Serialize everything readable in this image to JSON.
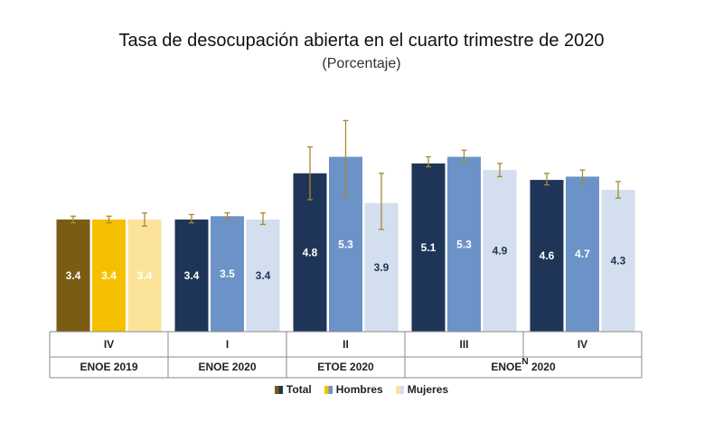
{
  "chart_data": {
    "type": "bar",
    "title": "Tasa de desocupación abierta en el cuarto trimestre de 2020",
    "subtitle": "(Porcentaje)",
    "groups": [
      {
        "quarter": "IV",
        "survey": "ENOE 2019",
        "values": [
          3.4,
          3.4,
          3.4
        ],
        "ci_low": [
          3.3,
          3.3,
          3.2
        ],
        "ci_high": [
          3.5,
          3.5,
          3.6
        ]
      },
      {
        "quarter": "I",
        "survey": "ENOE 2020",
        "values": [
          3.4,
          3.5,
          3.4
        ],
        "ci_low": [
          3.3,
          3.4,
          3.25
        ],
        "ci_high": [
          3.55,
          3.6,
          3.6
        ]
      },
      {
        "quarter": "II",
        "survey": "ETOE 2020",
        "values": [
          4.8,
          5.3,
          3.9
        ],
        "ci_low": [
          4.0,
          4.1,
          3.1
        ],
        "ci_high": [
          5.6,
          6.4,
          4.8
        ]
      },
      {
        "quarter": "III",
        "survey": "ENOE 2020",
        "values": [
          5.1,
          5.3,
          4.9
        ],
        "ci_low": [
          5.0,
          5.15,
          4.7
        ],
        "ci_high": [
          5.3,
          5.5,
          5.1
        ]
      },
      {
        "quarter": "IV",
        "survey": "ENOE 2020",
        "values": [
          4.6,
          4.7,
          4.3
        ],
        "ci_low": [
          4.45,
          4.5,
          4.05
        ],
        "ci_high": [
          4.8,
          4.9,
          4.55
        ]
      }
    ],
    "surveys": [
      {
        "label": "ENOE 2019",
        "span": 1
      },
      {
        "label": "ENOE 2020",
        "span": 1
      },
      {
        "label": "ETOE 2020",
        "span": 1
      },
      {
        "label": "ENOE",
        "superscript": "N",
        "suffix": " 2020",
        "span": 2
      }
    ],
    "series": [
      {
        "name": "Total",
        "color_first": "#7a5c12",
        "color": "#1f3557"
      },
      {
        "name": "Hombres",
        "color_first": "#f5c000",
        "color": "#6b93c8"
      },
      {
        "name": "Mujeres",
        "color_first": "#fbe49a",
        "color": "#d3deee"
      }
    ],
    "legend_position": "bottom",
    "ylim": [
      0,
      7.5
    ],
    "grid": false,
    "errorbar_color": "#a8892e"
  }
}
